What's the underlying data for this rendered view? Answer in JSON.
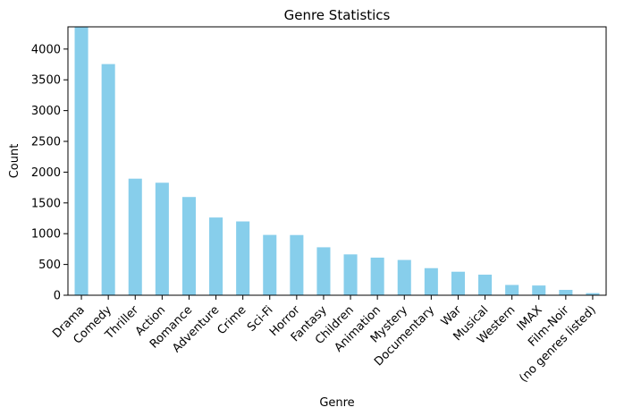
{
  "chart_data": {
    "type": "bar",
    "title": "Genre Statistics",
    "xlabel": "Genre",
    "ylabel": "Count",
    "ylim": [
      0,
      4361
    ],
    "yticks": [
      0,
      500,
      1000,
      1500,
      2000,
      2500,
      3000,
      3500,
      4000
    ],
    "bar_color": "#87CEEB",
    "grid": false,
    "categories": [
      "Drama",
      "Comedy",
      "Thriller",
      "Action",
      "Romance",
      "Adventure",
      "Crime",
      "Sci-Fi",
      "Horror",
      "Fantasy",
      "Children",
      "Animation",
      "Mystery",
      "Documentary",
      "War",
      "Musical",
      "Western",
      "IMAX",
      "Film-Noir",
      "(no genres listed)"
    ],
    "values": [
      4361,
      3756,
      1894,
      1828,
      1596,
      1263,
      1199,
      980,
      978,
      779,
      664,
      611,
      573,
      440,
      382,
      334,
      167,
      158,
      87,
      34
    ]
  }
}
